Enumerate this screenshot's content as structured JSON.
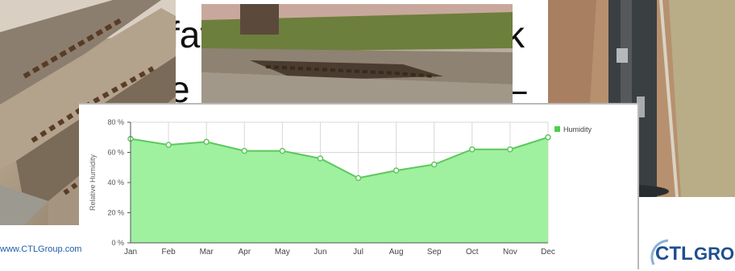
{
  "slide": {
    "line1_fragment": "fat",
    "line1_tail": "k",
    "line2_fragment": "e l",
    "line2_tail": "–",
    "footer_url": "www.CTLGroup.com",
    "logo_text_left": "CTL",
    "logo_text_right": "GROUP"
  },
  "photos": [
    {
      "name": "deteriorated-concrete-steps-photo"
    },
    {
      "name": "spalled-concrete-planter-wall-photo"
    },
    {
      "name": "corroded-pole-on-pavers-photo"
    }
  ],
  "chart_data": {
    "type": "area",
    "title": "",
    "xlabel": "",
    "ylabel": "Relative Humidity",
    "categories": [
      "Jan",
      "Feb",
      "Mar",
      "Apr",
      "May",
      "Jun",
      "Jul",
      "Aug",
      "Sep",
      "Oct",
      "Nov",
      "Dec"
    ],
    "series": [
      {
        "name": "Humidity",
        "values": [
          69,
          65,
          67,
          61,
          61,
          56,
          43,
          48,
          52,
          62,
          62,
          70
        ],
        "color": "#8fe88f"
      }
    ],
    "ylim": [
      0,
      80
    ],
    "yticks": [
      0,
      20,
      40,
      60,
      80
    ],
    "ytick_labels": [
      "0 %",
      "20 %",
      "40 %",
      "60 %",
      "80 %"
    ],
    "grid": true,
    "legend": "top-right",
    "line_color": "#5cc85c",
    "fill_color": "#9ff09f",
    "legend_swatch_color": "#4ccf4c"
  }
}
